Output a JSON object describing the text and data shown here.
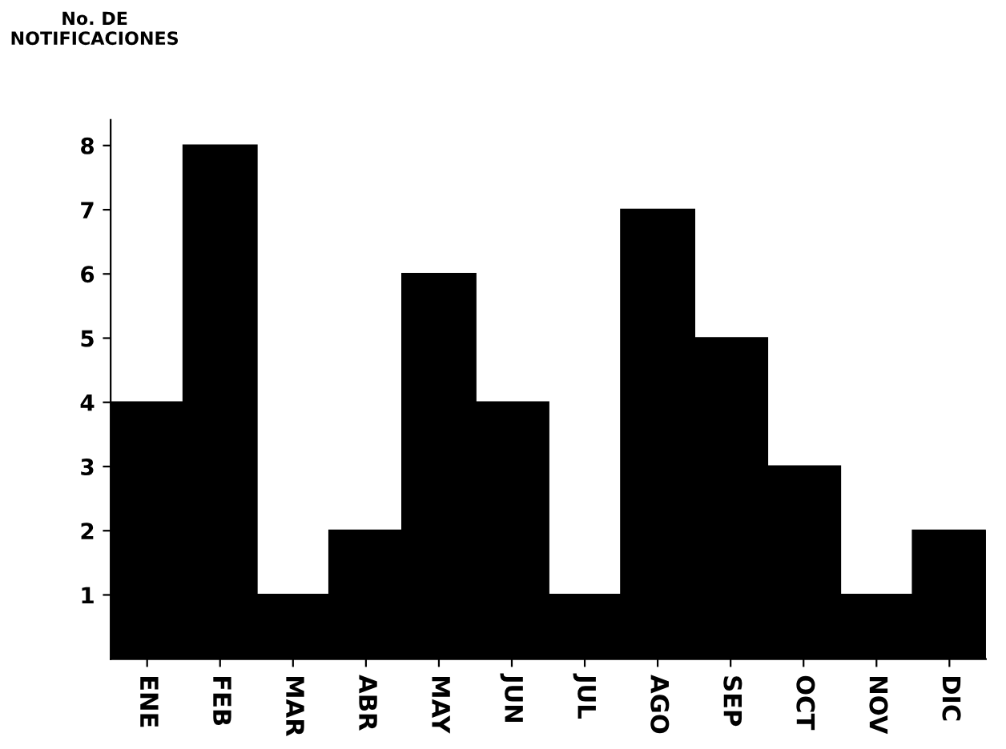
{
  "chart_data": {
    "type": "bar",
    "ylabel": "No. DE\nNOTIFICACIONES",
    "categories": [
      "ENE",
      "FEB",
      "MAR",
      "ABR",
      "MAY",
      "JUN",
      "JUL",
      "AGO",
      "SEP",
      "OCT",
      "NOV",
      "DIC"
    ],
    "values": [
      4,
      8,
      1,
      2,
      6,
      4,
      1,
      7,
      5,
      3,
      1,
      2
    ],
    "color": "#000000",
    "ylim": [
      0,
      8.4
    ],
    "yticks": [
      1,
      2,
      3,
      4,
      5,
      6,
      7,
      8
    ],
    "grid": false
  }
}
